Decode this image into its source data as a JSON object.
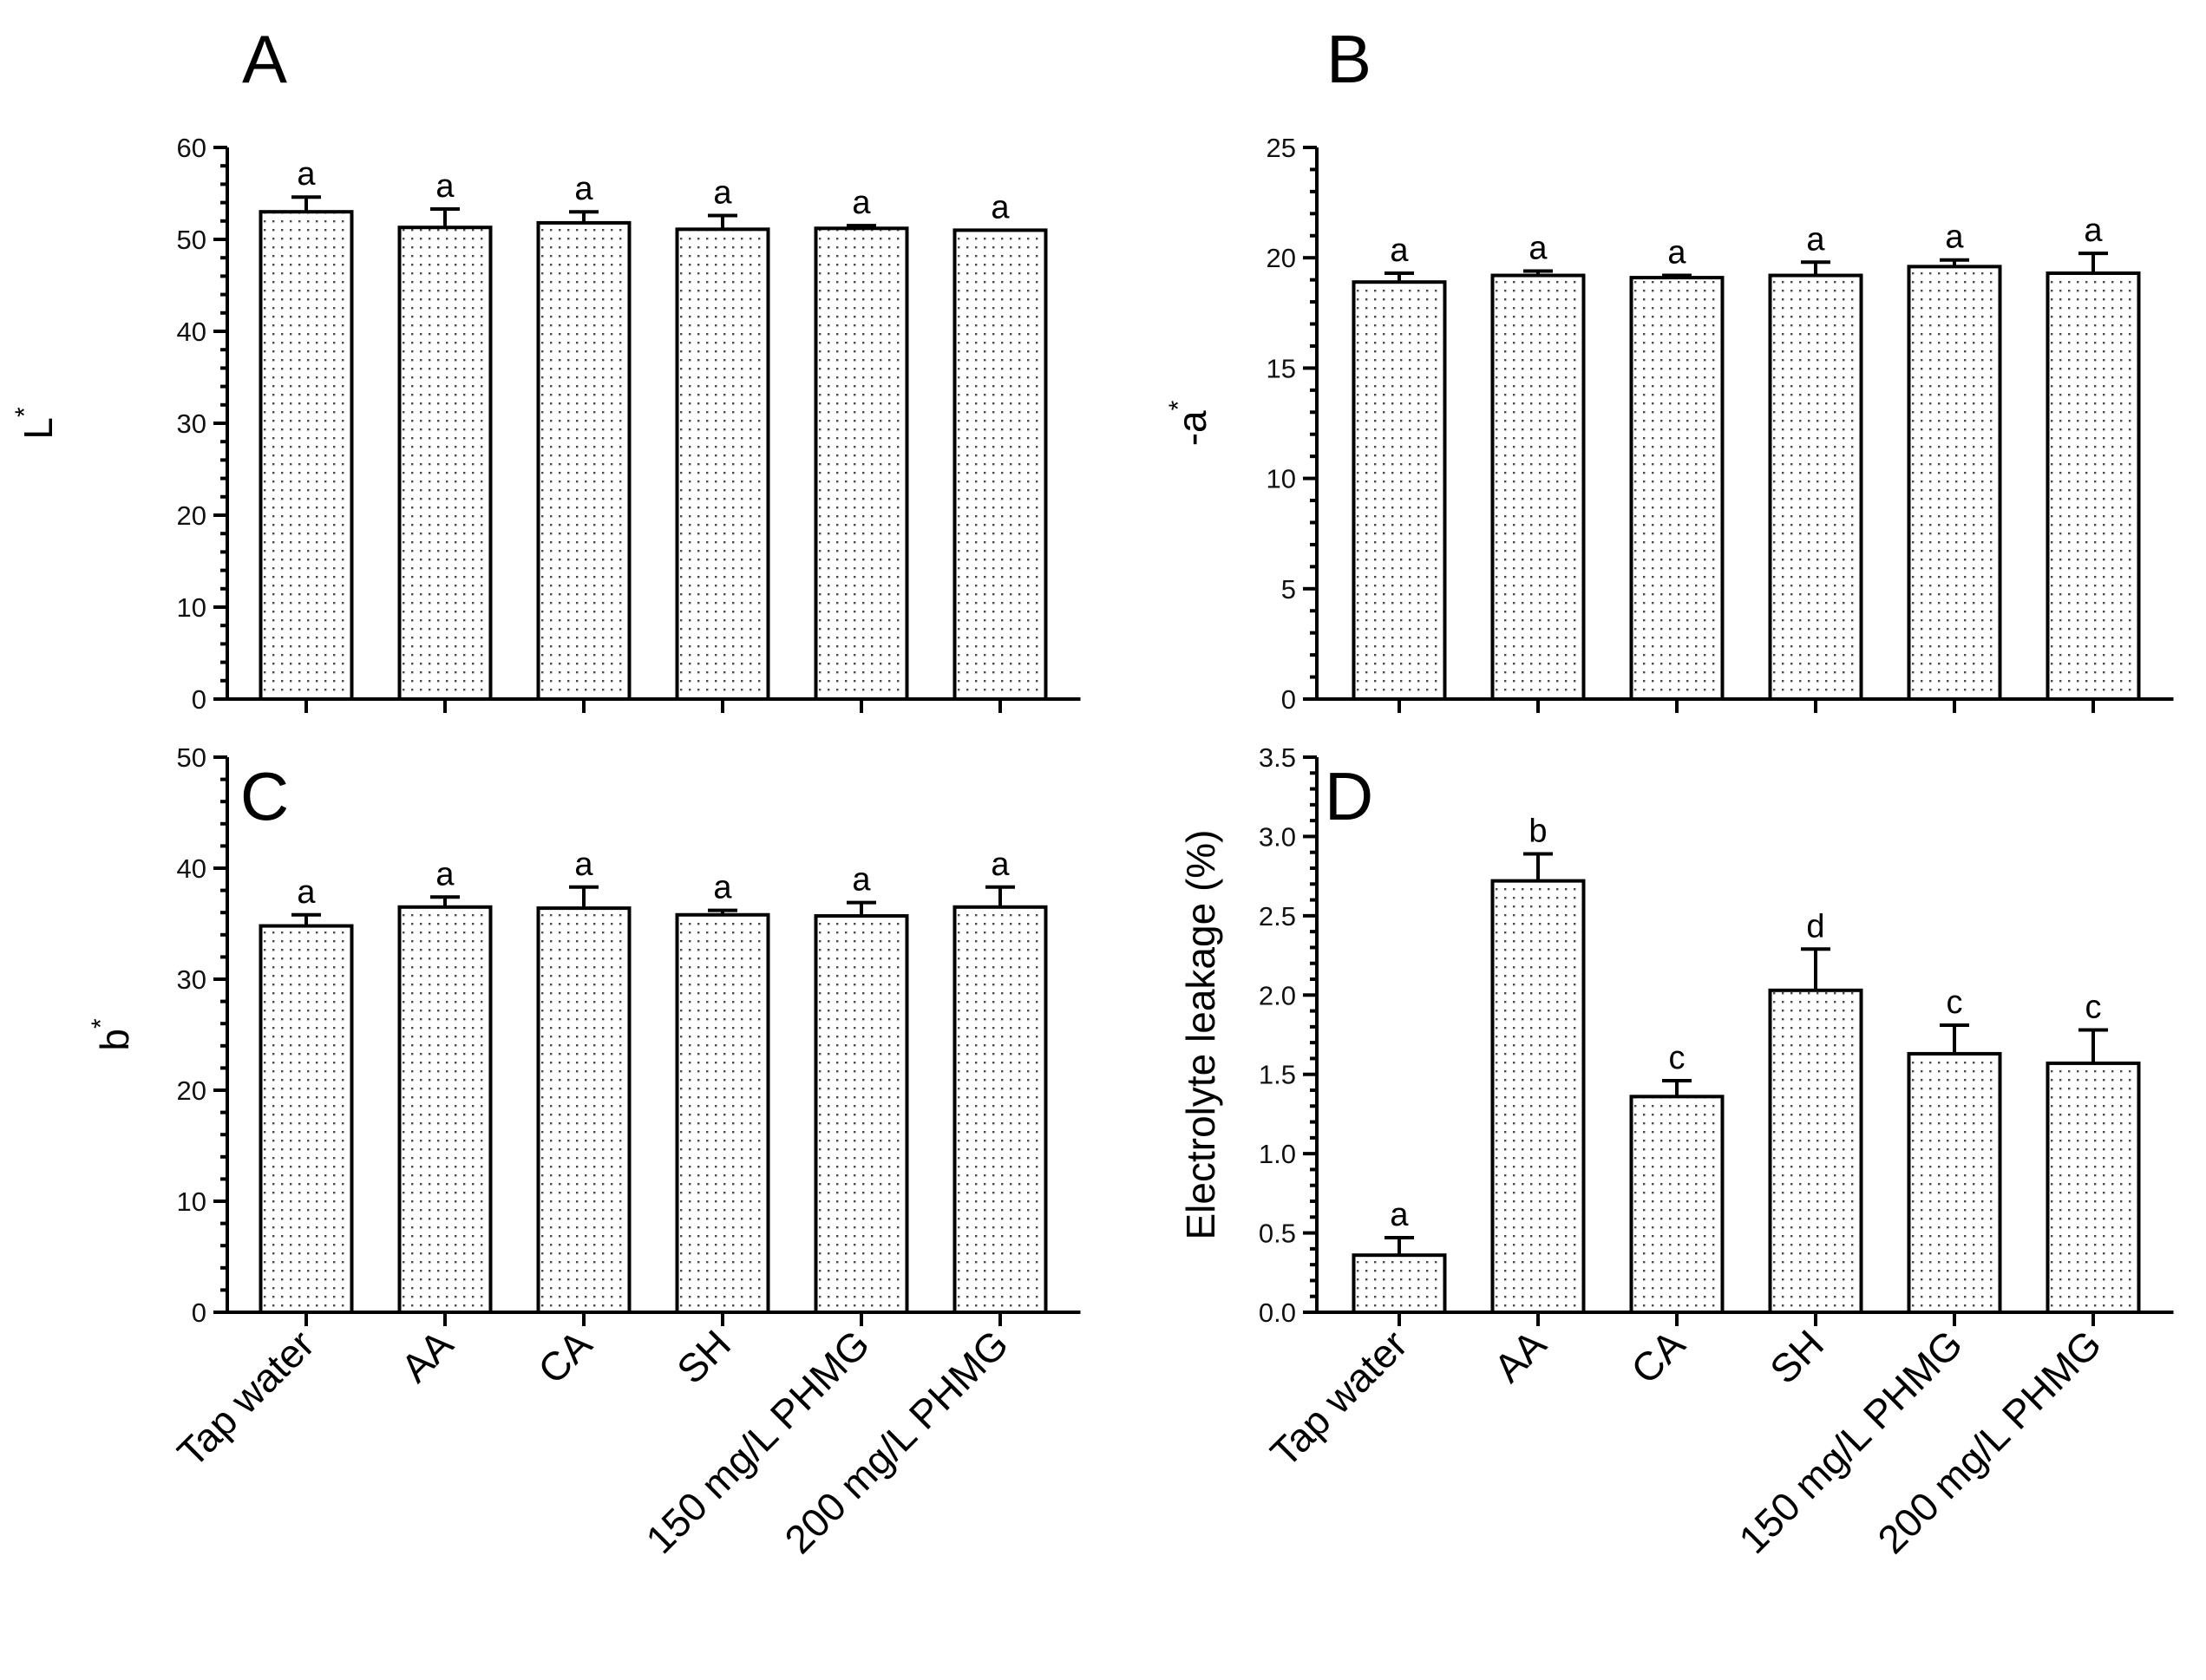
{
  "categories": [
    "Tap water",
    "AA",
    "CA",
    "SH",
    "150 mg/L PHMG",
    "200 mg/L PHMG"
  ],
  "chart_data": [
    {
      "type": "bar",
      "panel": "A",
      "ylabel": "L",
      "ylabel_sup": "*",
      "ylim": [
        0,
        60
      ],
      "yticks": [
        0,
        10,
        20,
        30,
        40,
        50,
        60
      ],
      "categories": [
        "Tap water",
        "AA",
        "CA",
        "SH",
        "150 mg/L PHMG",
        "200 mg/L PHMG"
      ],
      "values": [
        53.0,
        51.3,
        51.8,
        51.1,
        51.2,
        51.0
      ],
      "errors": [
        1.6,
        2.0,
        1.2,
        1.5,
        0.3,
        0.0
      ],
      "letters": [
        "a",
        "a",
        "a",
        "a",
        "a",
        "a"
      ],
      "show_category_labels": false
    },
    {
      "type": "bar",
      "panel": "B",
      "ylabel": "-a",
      "ylabel_sup": "*",
      "ylim": [
        0,
        25
      ],
      "yticks": [
        0,
        5,
        10,
        15,
        20,
        25
      ],
      "categories": [
        "Tap water",
        "AA",
        "CA",
        "SH",
        "150 mg/L PHMG",
        "200 mg/L PHMG"
      ],
      "values": [
        18.9,
        19.2,
        19.1,
        19.2,
        19.6,
        19.3
      ],
      "errors": [
        0.4,
        0.2,
        0.1,
        0.6,
        0.3,
        0.9
      ],
      "letters": [
        "a",
        "a",
        "a",
        "a",
        "a",
        "a"
      ],
      "show_category_labels": false
    },
    {
      "type": "bar",
      "panel": "C",
      "ylabel": "b",
      "ylabel_sup": "*",
      "ylim": [
        0,
        50
      ],
      "yticks": [
        0,
        10,
        20,
        30,
        40,
        50
      ],
      "categories": [
        "Tap water",
        "AA",
        "CA",
        "SH",
        "150 mg/L PHMG",
        "200 mg/L PHMG"
      ],
      "values": [
        34.8,
        36.5,
        36.4,
        35.8,
        35.7,
        36.5
      ],
      "errors": [
        1.0,
        0.9,
        1.9,
        0.4,
        1.2,
        1.8
      ],
      "letters": [
        "a",
        "a",
        "a",
        "a",
        "a",
        "a"
      ],
      "show_category_labels": true
    },
    {
      "type": "bar",
      "panel": "D",
      "ylabel": "Electrolyte leakage (%)",
      "ylabel_sup": "",
      "ylim": [
        0,
        3.5
      ],
      "yticks": [
        "0.0",
        "0.5",
        "1.0",
        "1.5",
        "2.0",
        "2.5",
        "3.0",
        "3.5"
      ],
      "categories": [
        "Tap water",
        "AA",
        "CA",
        "SH",
        "150 mg/L PHMG",
        "200 mg/L PHMG"
      ],
      "values": [
        0.36,
        2.72,
        1.36,
        2.03,
        1.63,
        1.57
      ],
      "errors": [
        0.11,
        0.17,
        0.1,
        0.26,
        0.18,
        0.21
      ],
      "letters": [
        "a",
        "b",
        "c",
        "d",
        "c",
        "c"
      ],
      "show_category_labels": true
    }
  ]
}
